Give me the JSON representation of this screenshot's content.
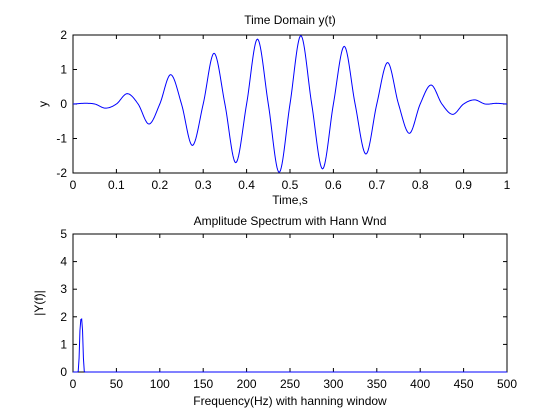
{
  "chart_data": [
    {
      "type": "line",
      "title": "Time Domain y(t)",
      "xlabel": "Time,s",
      "ylabel": "y",
      "xlim": [
        0,
        1
      ],
      "ylim": [
        -2,
        2
      ],
      "xticks": [
        0,
        0.1,
        0.2,
        0.3,
        0.4,
        0.5,
        0.6,
        0.7,
        0.8,
        0.9,
        1
      ],
      "xtick_labels": [
        "0",
        "0.1",
        "0.2",
        "0.3",
        "0.4",
        "0.5",
        "0.6",
        "0.7",
        "0.8",
        "0.9",
        "1"
      ],
      "yticks": [
        -2,
        -1,
        0,
        1,
        2
      ],
      "ytick_labels": [
        "-2",
        "-1",
        "0",
        "1",
        "2"
      ],
      "grid": false,
      "line_color": "#0000ff",
      "series": [
        {
          "x": [
            0,
            0.025,
            0.05,
            0.075,
            0.1,
            0.125,
            0.15,
            0.175,
            0.2,
            0.225,
            0.25,
            0.275,
            0.3,
            0.325,
            0.35,
            0.375,
            0.4,
            0.425,
            0.45,
            0.475,
            0.5,
            0.525,
            0.55,
            0.575,
            0.6,
            0.625,
            0.65,
            0.675,
            0.7,
            0.725,
            0.75,
            0.775,
            0.8,
            0.825,
            0.85,
            0.875,
            0.9,
            0.925,
            0.95,
            0.975,
            1
          ],
          "y": [
            0,
            0.02,
            0,
            -0.12,
            0,
            0.3,
            0,
            -0.58,
            0,
            0.85,
            0,
            -1.2,
            0,
            1.47,
            0,
            -1.7,
            0,
            1.88,
            0,
            -1.98,
            0,
            1.98,
            0,
            -1.88,
            0,
            1.67,
            0,
            -1.45,
            0,
            1.2,
            0,
            -0.85,
            0,
            0.55,
            0,
            -0.3,
            0,
            0.12,
            0,
            0.02,
            0
          ]
        }
      ]
    },
    {
      "type": "line",
      "title": "Amplitude Spectrum with Hann Wnd",
      "xlabel": "Frequency(Hz) with hanning window",
      "ylabel": "|Y(f)|",
      "xlim": [
        0,
        500
      ],
      "ylim": [
        0,
        5
      ],
      "xticks": [
        0,
        50,
        100,
        150,
        200,
        250,
        300,
        350,
        400,
        450,
        500
      ],
      "xtick_labels": [
        "0",
        "50",
        "100",
        "150",
        "200",
        "250",
        "300",
        "350",
        "400",
        "450",
        "500"
      ],
      "yticks": [
        0,
        1,
        2,
        3,
        4,
        5
      ],
      "ytick_labels": [
        "0",
        "1",
        "2",
        "3",
        "4",
        "5"
      ],
      "grid": false,
      "line_color": "#0000ff",
      "series": [
        {
          "x": [
            0,
            5,
            6,
            7,
            8,
            9,
            10,
            11,
            12,
            13,
            14,
            500
          ],
          "y": [
            0,
            0,
            0.02,
            0.5,
            1.5,
            1.9,
            1.92,
            1.5,
            0.5,
            0.02,
            0,
            0
          ]
        }
      ]
    }
  ]
}
